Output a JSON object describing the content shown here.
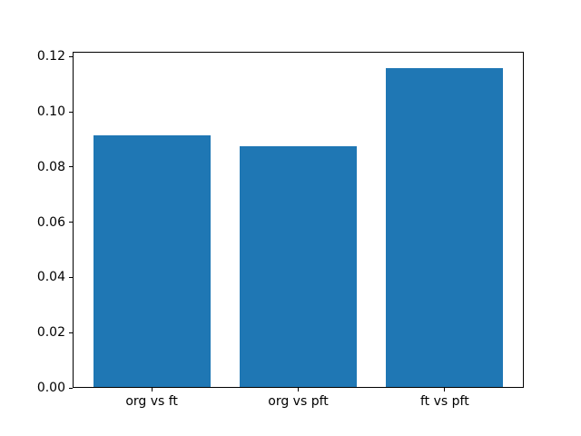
{
  "chart_data": {
    "type": "bar",
    "title": "",
    "xlabel": "",
    "ylabel": "",
    "categories": [
      "org vs ft",
      "org vs pft",
      "ft vs pft"
    ],
    "values": [
      0.0915,
      0.0875,
      0.116
    ],
    "bar_color": "#1f77b4",
    "yticks": [
      "0.00",
      "0.02",
      "0.04",
      "0.06",
      "0.08",
      "0.10",
      "0.12"
    ],
    "ytick_values": [
      0.0,
      0.02,
      0.04,
      0.06,
      0.08,
      0.1,
      0.12
    ],
    "ylim": [
      0,
      0.1218
    ],
    "xlim": [
      -0.54,
      2.54
    ],
    "bar_width": 0.8,
    "grid": false,
    "legend": null,
    "background": "#ffffff",
    "spine_color": "#000000"
  }
}
